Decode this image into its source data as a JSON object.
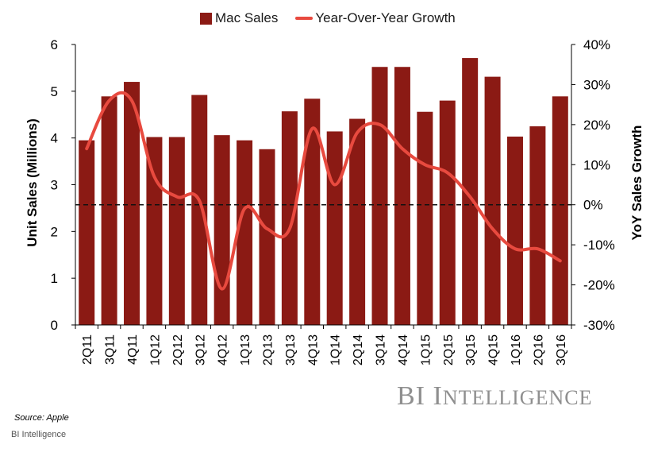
{
  "chart_data": {
    "type": "bar",
    "categories": [
      "2Q11",
      "3Q11",
      "4Q11",
      "1Q12",
      "2Q12",
      "3Q12",
      "4Q12",
      "1Q13",
      "2Q13",
      "3Q13",
      "4Q13",
      "1Q14",
      "2Q14",
      "3Q14",
      "4Q14",
      "1Q15",
      "2Q15",
      "3Q15",
      "4Q15",
      "1Q16",
      "2Q16",
      "3Q16"
    ],
    "series": [
      {
        "name": "Mac Sales",
        "type": "bar",
        "axis": "left",
        "color": "#8B1A14",
        "values": [
          3.95,
          4.89,
          5.2,
          4.02,
          4.02,
          4.92,
          4.06,
          3.95,
          3.76,
          4.57,
          4.84,
          4.14,
          4.41,
          5.52,
          5.52,
          4.56,
          4.8,
          5.71,
          5.31,
          4.03,
          4.25,
          4.89
        ]
      },
      {
        "name": "Year-Over-Year Growth",
        "type": "line",
        "axis": "right",
        "color": "#E84A3F",
        "values": [
          14,
          26,
          26,
          7,
          2,
          1,
          -21,
          -1,
          -6,
          -6,
          19,
          5,
          18,
          20,
          14,
          10,
          8,
          2,
          -6,
          -11,
          -11,
          -14
        ]
      }
    ],
    "ylabel": "Unit Sales (Millions)",
    "y2label": "YoY Sales Growth",
    "ylim": [
      0,
      6
    ],
    "y2lim": [
      -30,
      40
    ],
    "yticks": [
      "0",
      "1",
      "2",
      "3",
      "4",
      "5",
      "6"
    ],
    "y2ticks": [
      "-30%",
      "-20%",
      "-10%",
      "0%",
      "10%",
      "20%",
      "30%",
      "40%"
    ],
    "reference_line": {
      "axis": "right",
      "value": 0,
      "style": "dashed"
    },
    "legend_position": "top-center",
    "grid": false
  },
  "source": "Source: Apple",
  "credit": "BI Intelligence",
  "watermark": "BI Intelligence"
}
